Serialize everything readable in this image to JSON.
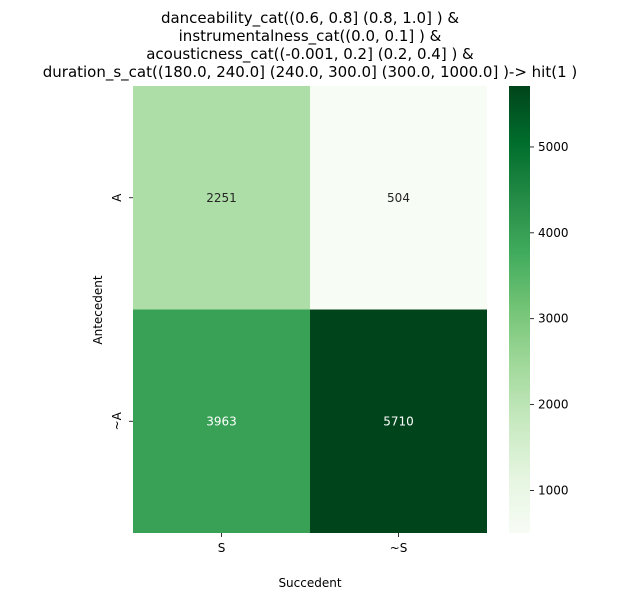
{
  "chart_data": {
    "type": "heatmap",
    "title_lines": [
      "danceability_cat((0.6, 0.8] (0.8, 1.0] ) &",
      "instrumentalness_cat((0.0, 0.1] ) &",
      "acousticness_cat((-0.001, 0.2] (0.2, 0.4] ) &",
      "duration_s_cat((180.0, 240.0] (240.0, 300.0] (300.0, 1000.0] )-> hit(1 )"
    ],
    "xlabel": "Succedent",
    "ylabel": "Antecedent",
    "x_categories": [
      "S",
      "~S"
    ],
    "y_categories": [
      "A",
      "~A"
    ],
    "values": [
      [
        2251,
        504
      ],
      [
        3963,
        5710
      ]
    ],
    "colormap": "Greens",
    "colorbar": {
      "vmin": 504,
      "vmax": 5710,
      "ticks": [
        1000,
        2000,
        3000,
        4000,
        5000
      ]
    }
  }
}
